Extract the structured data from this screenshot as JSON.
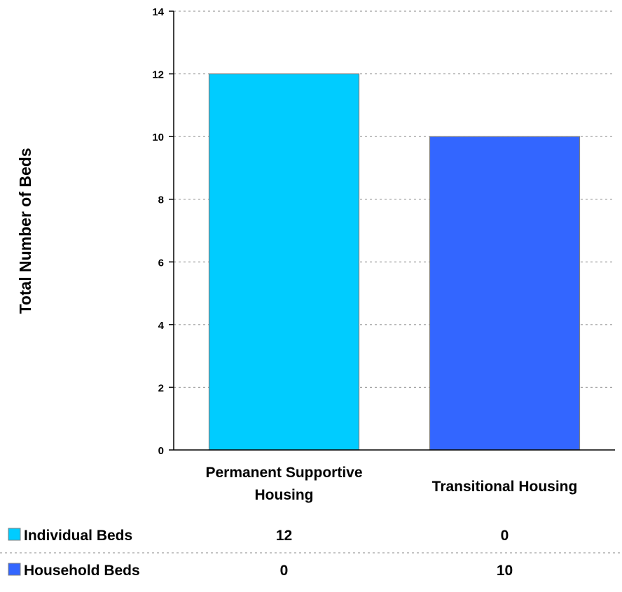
{
  "chart_data": {
    "type": "bar",
    "stacked": true,
    "title": "",
    "xlabel": "",
    "ylabel": "Total Number of Beds",
    "categories": [
      "Permanent Supportive Housing",
      "Transitional Housing"
    ],
    "category_lines": [
      [
        "Permanent Supportive",
        "Housing"
      ],
      [
        "Transitional Housing"
      ]
    ],
    "series": [
      {
        "name": "Individual Beds",
        "values": [
          12,
          0
        ],
        "color": "#00CCFF"
      },
      {
        "name": "Household Beds",
        "values": [
          0,
          10
        ],
        "color": "#3366FF"
      }
    ],
    "ylim": [
      0,
      14
    ],
    "yticks": [
      0,
      2,
      4,
      6,
      8,
      10,
      12,
      14
    ],
    "grid": true,
    "legend": "data-table-below-axis"
  },
  "data_table": {
    "rows": [
      {
        "label": "Individual Beds",
        "values": [
          "12",
          "0"
        ]
      },
      {
        "label": "Household Beds",
        "values": [
          "0",
          "10"
        ]
      }
    ]
  },
  "colors": {
    "gridline": "#888888",
    "axis": "#000000",
    "bar_border": "#7f7f7f"
  }
}
